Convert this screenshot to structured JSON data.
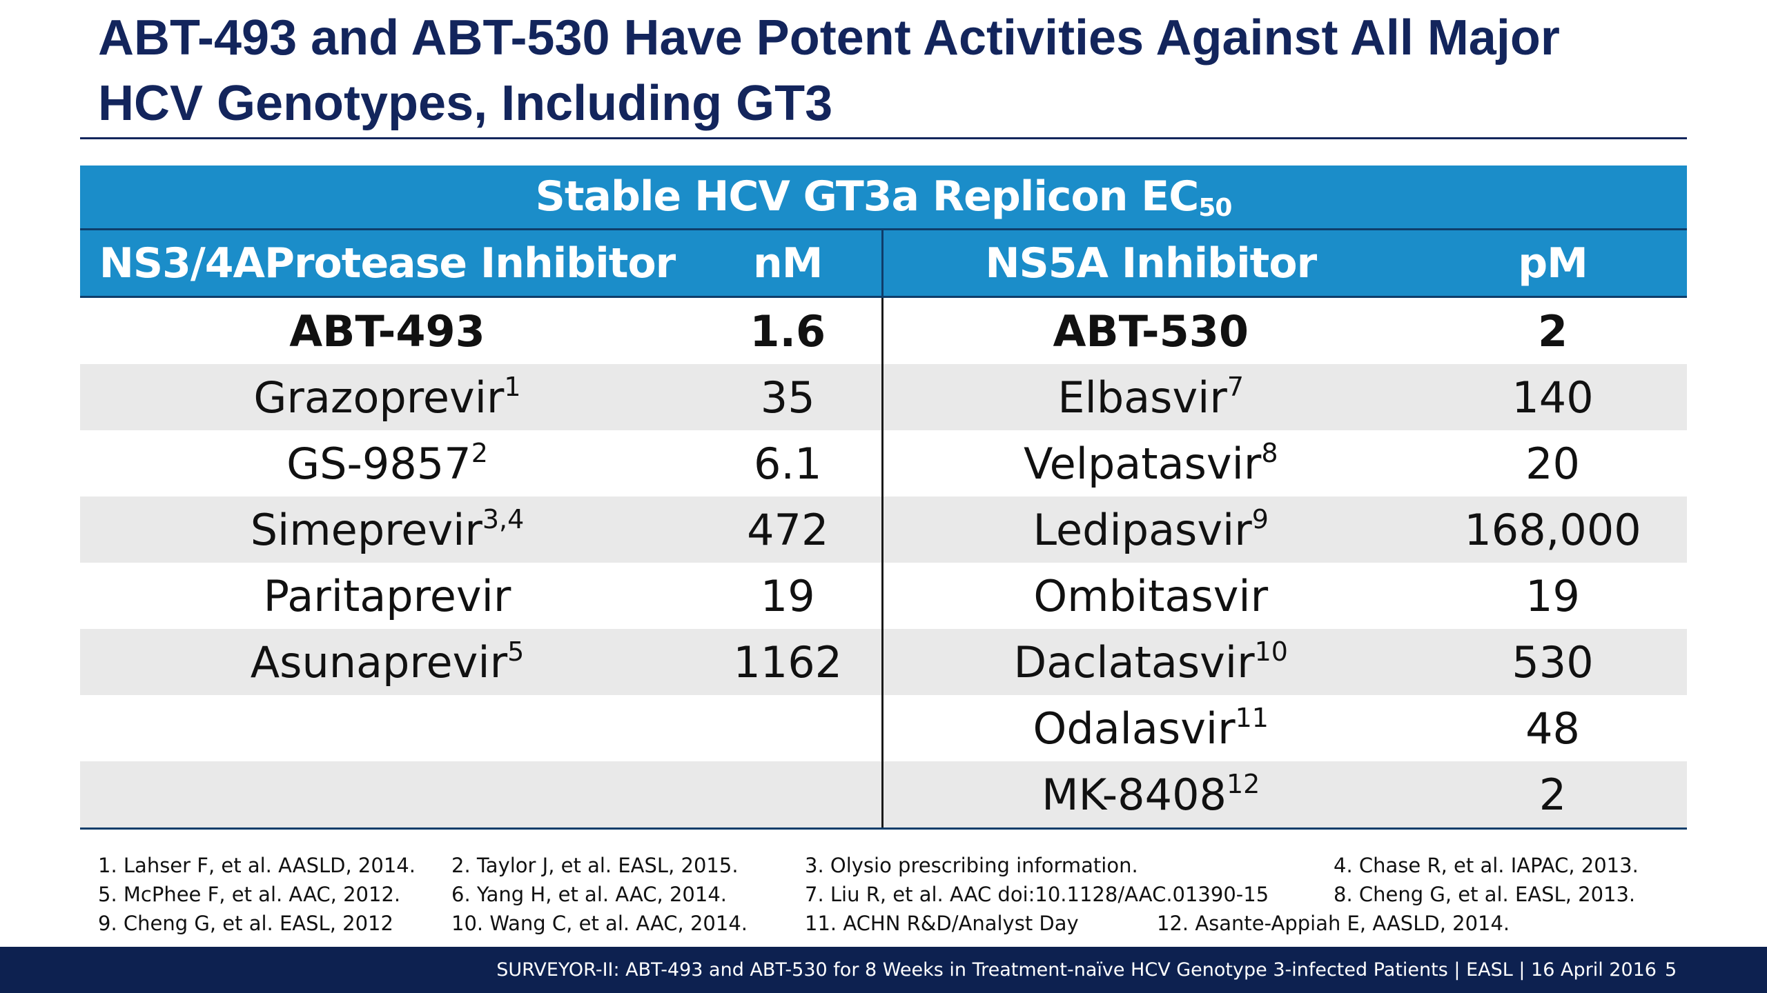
{
  "title": {
    "line1": "ABT-493 and ABT-530 Have Potent Activities Against All Major",
    "line2": "HCV Genotypes, Including GT3"
  },
  "table": {
    "banner_main": "Stable HCV GT3a Replicon EC",
    "banner_sub": "50",
    "headers": {
      "protease": "NS3/4AProtease Inhibitor",
      "nm": "nM",
      "ns5a": "NS5A Inhibitor",
      "pm": "pM"
    },
    "rows": [
      {
        "pi": "ABT-493",
        "pi_ref": "",
        "nm": "1.6",
        "ns5a": "ABT-530",
        "ns5a_ref": "",
        "pm": "2"
      },
      {
        "pi": "Grazoprevir",
        "pi_ref": "1",
        "nm": "35",
        "ns5a": "Elbasvir",
        "ns5a_ref": "7",
        "pm": "140"
      },
      {
        "pi": "GS-9857",
        "pi_ref": "2",
        "nm": "6.1",
        "ns5a": "Velpatasvir",
        "ns5a_ref": "8",
        "pm": "20"
      },
      {
        "pi": "Simeprevir",
        "pi_ref": "3,4",
        "nm": "472",
        "ns5a": "Ledipasvir",
        "ns5a_ref": "9",
        "pm": "168,000"
      },
      {
        "pi": "Paritaprevir",
        "pi_ref": "",
        "nm": "19",
        "ns5a": "Ombitasvir",
        "ns5a_ref": "",
        "pm": "19"
      },
      {
        "pi": "Asunaprevir",
        "pi_ref": "5",
        "nm": "1162",
        "ns5a": "Daclatasvir",
        "ns5a_ref": "10",
        "pm": "530"
      },
      {
        "pi": "",
        "pi_ref": "",
        "nm": "",
        "ns5a": "Odalasvir",
        "ns5a_ref": "11",
        "pm": "48"
      },
      {
        "pi": "",
        "pi_ref": "",
        "nm": "",
        "ns5a": "MK-8408",
        "ns5a_ref": "12",
        "pm": "2"
      }
    ]
  },
  "references": [
    "1. Lahser F, et al. AASLD, 2014.",
    "2. Taylor J, et al. EASL, 2015.",
    "3. Olysio prescribing information.",
    "4. Chase R, et al. IAPAC, 2013.",
    "5. McPhee F, et al. AAC, 2012.",
    "6. Yang H, et al. AAC, 2014.",
    "7. Liu R, et al. AAC doi:10.1128/AAC.01390-15",
    "8. Cheng G, et al. EASL, 2013.",
    "9. Cheng G, et al. EASL, 2012",
    "10. Wang C, et al. AAC, 2014.",
    "11. ACHN R&D/Analyst Day",
    "12. Asante-Appiah E, AASLD, 2014."
  ],
  "footer": {
    "text": "SURVEYOR-II: ABT-493 and ABT-530 for 8 Weeks in Treatment-naïve HCV Genotype 3-infected Patients  | EASL | 16 April 2016",
    "page": "5"
  },
  "colors": {
    "title": "#13255c",
    "table_header": "#1b8dc9",
    "row_shade": "#e9e9e9",
    "footer_bg": "#0d2150"
  }
}
